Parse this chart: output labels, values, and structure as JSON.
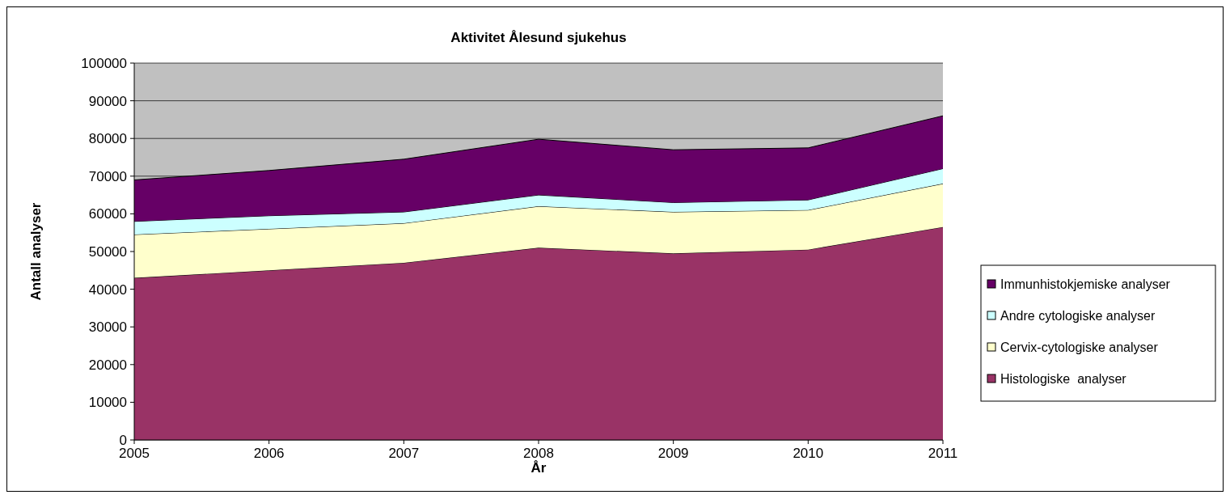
{
  "chart_data": {
    "type": "area",
    "title": "Aktivitet Ålesund sjukehus",
    "xlabel": "År",
    "ylabel": "Antall analyser",
    "categories": [
      "2005",
      "2006",
      "2007",
      "2008",
      "2009",
      "2010",
      "2011"
    ],
    "stacked": true,
    "series": [
      {
        "name": "Histologiske  analyser",
        "color": "#993366",
        "values": [
          43000,
          45000,
          47000,
          51000,
          49500,
          50500,
          56500
        ]
      },
      {
        "name": "Cervix-cytologiske analyser",
        "color": "#ffffcc",
        "values": [
          11500,
          11000,
          10500,
          11000,
          11000,
          10500,
          11500
        ]
      },
      {
        "name": "Andre cytologiske analyser",
        "color": "#ccffff",
        "values": [
          3500,
          3500,
          3000,
          3000,
          2500,
          2700,
          4000
        ]
      },
      {
        "name": "Immunhistokjemiske analyser",
        "color": "#660066",
        "values": [
          11000,
          12000,
          14000,
          14800,
          14000,
          13800,
          14000
        ]
      }
    ],
    "ylim": [
      0,
      100000
    ],
    "yticks": [
      0,
      10000,
      20000,
      30000,
      40000,
      50000,
      60000,
      70000,
      80000,
      90000,
      100000
    ],
    "grid": "y",
    "legend": "right"
  }
}
